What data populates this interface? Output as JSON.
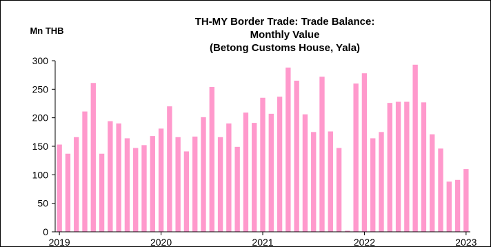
{
  "chart_data": {
    "type": "bar",
    "title_lines": [
      "TH-MY Border Trade: Trade Balance:",
      "Monthly Value",
      "(Betong Customs House, Yala)"
    ],
    "unit": "Mn THB",
    "ylim": [
      0,
      300
    ],
    "y_ticks": [
      0,
      50,
      100,
      150,
      200,
      250,
      300
    ],
    "x_tick_labels": [
      "2019",
      "2020",
      "2021",
      "2022",
      "2023"
    ],
    "x_start": "2019-01",
    "x_end": "2023-01",
    "bar_color": "#ff99cc",
    "grid": false,
    "legend": "none",
    "series": [
      {
        "x": [
          "2019-01",
          "2019-02",
          "2019-03",
          "2019-04",
          "2019-05",
          "2019-06",
          "2019-07",
          "2019-08",
          "2019-09",
          "2019-10",
          "2019-11",
          "2019-12",
          "2020-01",
          "2020-02",
          "2020-03",
          "2020-04",
          "2020-05",
          "2020-06",
          "2020-07",
          "2020-08",
          "2020-09",
          "2020-10",
          "2020-11",
          "2020-12",
          "2021-01",
          "2021-02",
          "2021-03",
          "2021-04",
          "2021-05",
          "2021-06",
          "2021-07",
          "2021-08",
          "2021-09",
          "2021-10",
          "2021-11",
          "2021-12",
          "2022-01",
          "2022-02",
          "2022-03",
          "2022-04",
          "2022-05",
          "2022-06",
          "2022-07",
          "2022-08",
          "2022-09",
          "2022-10",
          "2022-11",
          "2022-12",
          "2023-01"
        ],
        "values": [
          153,
          137,
          166,
          211,
          261,
          137,
          194,
          190,
          164,
          147,
          152,
          168,
          181,
          220,
          166,
          141,
          167,
          201,
          254,
          166,
          190,
          149,
          209,
          191,
          235,
          207,
          237,
          288,
          265,
          206,
          175,
          272,
          176,
          147,
          2,
          260,
          278,
          164,
          175,
          226,
          228,
          228,
          293,
          227,
          171,
          146,
          88,
          91,
          110
        ]
      }
    ]
  }
}
